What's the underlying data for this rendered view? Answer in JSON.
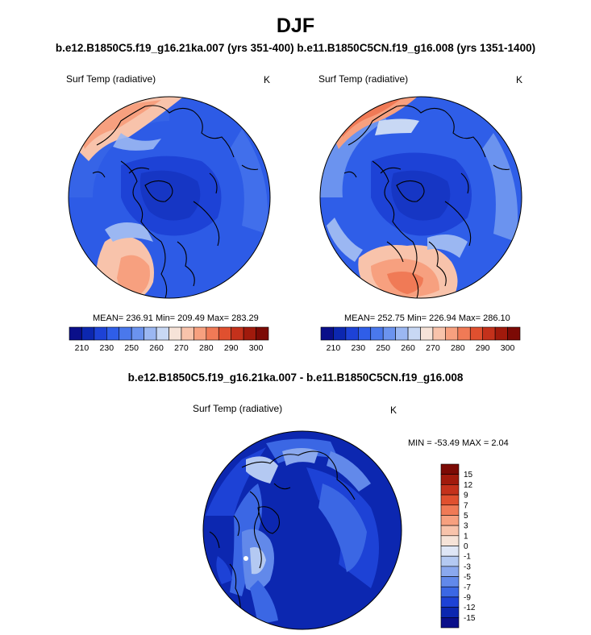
{
  "figure": {
    "season": "DJF",
    "subtitle": "b.e12.B1850C5.f19_g16.21ka.007 (yrs 351-400) b.e11.B1850C5CN.f19_g16.008 (yrs 1351-1400)",
    "difference_title": "b.e12.B1850C5.f19_g16.21ka.007 - b.e11.B1850C5CN.f19_g16.008"
  },
  "panels": [
    {
      "id": "left",
      "variable": "Surf Temp (radiative)",
      "units": "K",
      "stats": "MEAN= 236.91  Min= 209.49  Max= 283.29"
    },
    {
      "id": "right",
      "variable": "Surf Temp (radiative)",
      "units": "K",
      "stats": "MEAN= 252.75  Min= 226.94  Max= 286.10"
    },
    {
      "id": "diff",
      "variable": "Surf Temp (radiative)",
      "units": "K",
      "stats": "MIN = -53.49 MAX =   2.04"
    }
  ],
  "chart_data": [
    {
      "type": "heatmap",
      "title": "Surf Temp (radiative)",
      "projection": "north polar stereographic",
      "units": "K",
      "mean": 236.91,
      "min": 209.49,
      "max": 283.29,
      "colorbar": {
        "orientation": "horizontal",
        "levels": [
          210,
          220,
          230,
          240,
          250,
          255,
          260,
          265,
          270,
          275,
          280,
          285,
          290,
          295,
          300
        ],
        "tick_labels": [
          "210",
          "230",
          "250",
          "260",
          "270",
          "280",
          "290",
          "300"
        ],
        "colors": [
          "#0a0f8a",
          "#0c27b0",
          "#1d42d6",
          "#2f5ee8",
          "#4a78ec",
          "#6b93ef",
          "#9bb7f2",
          "#c8d8f4",
          "#f6e3d8",
          "#f8c3ab",
          "#f7a07f",
          "#f07a56",
          "#e0502f",
          "#c4311b",
          "#a11a0c",
          "#7c0a05"
        ]
      }
    },
    {
      "type": "heatmap",
      "title": "Surf Temp (radiative)",
      "projection": "north polar stereographic",
      "units": "K",
      "mean": 252.75,
      "min": 226.94,
      "max": 286.1,
      "colorbar": {
        "orientation": "horizontal",
        "levels": [
          210,
          220,
          230,
          240,
          250,
          255,
          260,
          265,
          270,
          275,
          280,
          285,
          290,
          295,
          300
        ],
        "tick_labels": [
          "210",
          "230",
          "250",
          "260",
          "270",
          "280",
          "290",
          "300"
        ],
        "colors": [
          "#0a0f8a",
          "#0c27b0",
          "#1d42d6",
          "#2f5ee8",
          "#4a78ec",
          "#6b93ef",
          "#9bb7f2",
          "#c8d8f4",
          "#f6e3d8",
          "#f8c3ab",
          "#f7a07f",
          "#f07a56",
          "#e0502f",
          "#c4311b",
          "#a11a0c",
          "#7c0a05"
        ]
      }
    },
    {
      "type": "heatmap",
      "title": "Surf Temp (radiative)",
      "projection": "north polar stereographic",
      "units": "K",
      "min": -53.49,
      "max": 2.04,
      "colorbar": {
        "orientation": "vertical",
        "tick_labels": [
          "15",
          "12",
          "9",
          "7",
          "5",
          "3",
          "1",
          "0",
          "-1",
          "-3",
          "-5",
          "-7",
          "-9",
          "-12",
          "-15"
        ],
        "colors": [
          "#7c0a05",
          "#a11a0c",
          "#c4311b",
          "#e0502f",
          "#f07a56",
          "#f7a07f",
          "#f8c3ab",
          "#f6e3d8",
          "#dfe6f6",
          "#b4c9f2",
          "#8aa8ee",
          "#6289ea",
          "#3b67e4",
          "#1d42d6",
          "#0c27b0",
          "#0a0f8a"
        ]
      }
    }
  ]
}
